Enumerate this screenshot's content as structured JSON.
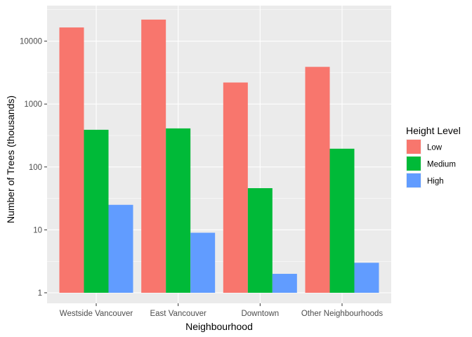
{
  "chart_data": {
    "type": "bar",
    "xlabel": "Neighbourhood",
    "ylabel": "Number of Trees (thousands)",
    "y_scale": "log10",
    "ylim": [
      1,
      30000
    ],
    "y_ticks": [
      1,
      10,
      100,
      1000,
      10000
    ],
    "y_tick_labels": [
      "1",
      "10",
      "100",
      "1000",
      "10000"
    ],
    "categories": [
      "Westside Vancouver",
      "East Vancouver",
      "Downtown",
      "Other Neighbourhoods"
    ],
    "series": [
      {
        "name": "Low",
        "color": "#F8766D",
        "values": [
          16500,
          22000,
          2200,
          3900
        ]
      },
      {
        "name": "Medium",
        "color": "#00BA38",
        "values": [
          390,
          410,
          46,
          195
        ]
      },
      {
        "name": "High",
        "color": "#619CFF",
        "values": [
          25,
          9,
          2,
          3
        ]
      }
    ],
    "legend": {
      "title": "Height Level",
      "placement": "right"
    },
    "grid": true
  }
}
